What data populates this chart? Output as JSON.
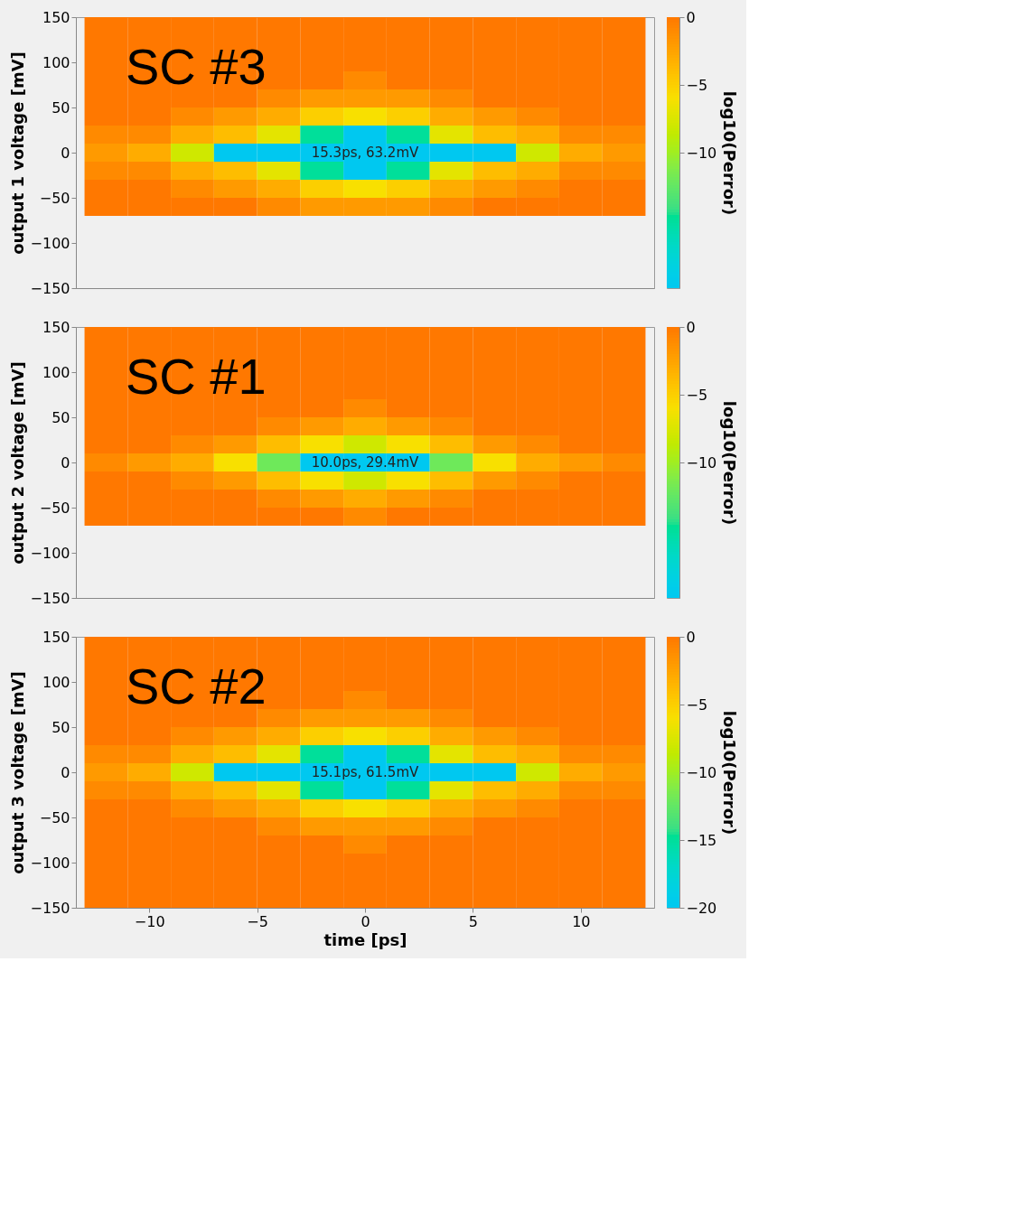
{
  "chart_data": [
    {
      "type": "heatmap",
      "title": "SC #3",
      "ylabel": "output 1 voltage [mV]",
      "clabel": "log10(Perror)",
      "tick_labels": "y",
      "annotations": [
        "15.3ps, 63.2mV"
      ],
      "x": [
        -12,
        -10,
        -8,
        -6,
        -4,
        -2,
        0,
        2,
        4,
        6,
        8,
        10,
        12
      ],
      "y": [
        140,
        120,
        100,
        80,
        60,
        40,
        20,
        0,
        -20,
        -40,
        -60
      ],
      "xlim": [
        -13.4,
        13.4
      ],
      "ylim": [
        -150,
        150
      ],
      "yticks": [
        -150,
        -100,
        -50,
        0,
        50,
        100,
        150
      ],
      "clim": [
        -20,
        0
      ],
      "cticks": [
        0,
        -5,
        -10
      ],
      "cells": [
        [
          0,
          0,
          0,
          0,
          0,
          0,
          0,
          0,
          0,
          0,
          0,
          0,
          0
        ],
        [
          0,
          0,
          0,
          0,
          0,
          0,
          0,
          0,
          0,
          0,
          0,
          0,
          0
        ],
        [
          0,
          0,
          0,
          0,
          0,
          0,
          0,
          0,
          0,
          0,
          0,
          0,
          0
        ],
        [
          0,
          0,
          0,
          0,
          0,
          0,
          -1,
          0,
          0,
          0,
          0,
          0,
          0
        ],
        [
          0,
          0,
          0,
          0,
          -1,
          -2,
          -2,
          -2,
          -1,
          0,
          0,
          0,
          0
        ],
        [
          0,
          0,
          -1,
          -2,
          -3,
          -5,
          -6,
          -5,
          -3,
          -2,
          -1,
          0,
          0
        ],
        [
          -1,
          -1,
          -3,
          -4,
          -7,
          -15,
          -20,
          -15,
          -7,
          -4,
          -3,
          -1,
          -1
        ],
        [
          -2,
          -3,
          -8,
          -20,
          -20,
          -20,
          -20,
          -20,
          -20,
          -20,
          -8,
          -3,
          -2
        ],
        [
          -1,
          -1,
          -3,
          -4,
          -7,
          -15,
          -20,
          -15,
          -7,
          -4,
          -3,
          -1,
          -1
        ],
        [
          0,
          0,
          -1,
          -2,
          -3,
          -5,
          -6,
          -5,
          -3,
          -2,
          -1,
          0,
          0
        ],
        [
          0,
          0,
          0,
          0,
          -1,
          -2,
          -2,
          -2,
          -1,
          0,
          0,
          0,
          0
        ]
      ]
    },
    {
      "type": "heatmap",
      "title": "SC #1",
      "ylabel": "output 2 voltage [mV]",
      "clabel": "log10(Perror)",
      "tick_labels": "y",
      "annotations": [
        "10.0ps, 29.4mV"
      ],
      "x": [
        -12,
        -10,
        -8,
        -6,
        -4,
        -2,
        0,
        2,
        4,
        6,
        8,
        10,
        12
      ],
      "y": [
        140,
        120,
        100,
        80,
        60,
        40,
        20,
        0,
        -20,
        -40,
        -60
      ],
      "xlim": [
        -13.4,
        13.4
      ],
      "ylim": [
        -150,
        150
      ],
      "yticks": [
        -150,
        -100,
        -50,
        0,
        50,
        100,
        150
      ],
      "clim": [
        -20,
        0
      ],
      "cticks": [
        0,
        -5,
        -10
      ],
      "cells": [
        [
          0,
          0,
          0,
          0,
          0,
          0,
          0,
          0,
          0,
          0,
          0,
          0,
          0
        ],
        [
          0,
          0,
          0,
          0,
          0,
          0,
          0,
          0,
          0,
          0,
          0,
          0,
          0
        ],
        [
          0,
          0,
          0,
          0,
          0,
          0,
          0,
          0,
          0,
          0,
          0,
          0,
          0
        ],
        [
          0,
          0,
          0,
          0,
          0,
          0,
          0,
          0,
          0,
          0,
          0,
          0,
          0
        ],
        [
          0,
          0,
          0,
          0,
          0,
          0,
          -1,
          0,
          0,
          0,
          0,
          0,
          0
        ],
        [
          0,
          0,
          0,
          0,
          -1,
          -2,
          -3,
          -2,
          -1,
          0,
          0,
          0,
          0
        ],
        [
          0,
          0,
          -1,
          -2,
          -4,
          -6,
          -8,
          -6,
          -4,
          -2,
          -1,
          0,
          0
        ],
        [
          -1,
          -2,
          -3,
          -6,
          -12,
          -20,
          -20,
          -20,
          -12,
          -6,
          -3,
          -2,
          -1
        ],
        [
          0,
          0,
          -1,
          -2,
          -4,
          -6,
          -8,
          -6,
          -4,
          -2,
          -1,
          0,
          0
        ],
        [
          0,
          0,
          0,
          0,
          -1,
          -2,
          -3,
          -2,
          -1,
          0,
          0,
          0,
          0
        ],
        [
          0,
          0,
          0,
          0,
          0,
          0,
          -1,
          0,
          0,
          0,
          0,
          0,
          0
        ]
      ]
    },
    {
      "type": "heatmap",
      "title": "SC #2",
      "xlabel": "time [ps]",
      "ylabel": "output 3 voltage [mV]",
      "clabel": "log10(Perror)",
      "annotations": [
        "15.1ps, 61.5mV"
      ],
      "x": [
        -12,
        -10,
        -8,
        -6,
        -4,
        -2,
        0,
        2,
        4,
        6,
        8,
        10,
        12
      ],
      "y": [
        140,
        120,
        100,
        80,
        60,
        40,
        20,
        0,
        -20,
        -40,
        -60,
        -80,
        -100,
        -120,
        -140
      ],
      "xlim": [
        -13.4,
        13.4
      ],
      "ylim": [
        -150,
        150
      ],
      "xticks": [
        -10,
        -5,
        0,
        5,
        10
      ],
      "yticks": [
        -150,
        -100,
        -50,
        0,
        50,
        100,
        150
      ],
      "clim": [
        -20,
        0
      ],
      "cticks": [
        0,
        -5,
        -10,
        -15,
        -20
      ],
      "cells": [
        [
          0,
          0,
          0,
          0,
          0,
          0,
          0,
          0,
          0,
          0,
          0,
          0,
          0
        ],
        [
          0,
          0,
          0,
          0,
          0,
          0,
          0,
          0,
          0,
          0,
          0,
          0,
          0
        ],
        [
          0,
          0,
          0,
          0,
          0,
          0,
          0,
          0,
          0,
          0,
          0,
          0,
          0
        ],
        [
          0,
          0,
          0,
          0,
          0,
          0,
          -1,
          0,
          0,
          0,
          0,
          0,
          0
        ],
        [
          0,
          0,
          0,
          0,
          -1,
          -2,
          -2,
          -2,
          -1,
          0,
          0,
          0,
          0
        ],
        [
          0,
          0,
          -1,
          -2,
          -3,
          -5,
          -6,
          -5,
          -3,
          -2,
          -1,
          0,
          0
        ],
        [
          -1,
          -1,
          -3,
          -4,
          -7,
          -15,
          -20,
          -15,
          -7,
          -4,
          -3,
          -1,
          -1
        ],
        [
          -2,
          -3,
          -8,
          -20,
          -20,
          -20,
          -20,
          -20,
          -20,
          -20,
          -8,
          -3,
          -2
        ],
        [
          -1,
          -1,
          -3,
          -4,
          -7,
          -15,
          -20,
          -15,
          -7,
          -4,
          -3,
          -1,
          -1
        ],
        [
          0,
          0,
          -1,
          -2,
          -3,
          -5,
          -6,
          -5,
          -3,
          -2,
          -1,
          0,
          0
        ],
        [
          0,
          0,
          0,
          0,
          -1,
          -2,
          -2,
          -2,
          -1,
          0,
          0,
          0,
          0
        ],
        [
          0,
          0,
          0,
          0,
          0,
          0,
          -1,
          0,
          0,
          0,
          0,
          0,
          0
        ],
        [
          0,
          0,
          0,
          0,
          0,
          0,
          0,
          0,
          0,
          0,
          0,
          0,
          0
        ],
        [
          0,
          0,
          0,
          0,
          0,
          0,
          0,
          0,
          0,
          0,
          0,
          0,
          0
        ],
        [
          0,
          0,
          0,
          0,
          0,
          0,
          0,
          0,
          0,
          0,
          0,
          0,
          0
        ]
      ]
    }
  ]
}
